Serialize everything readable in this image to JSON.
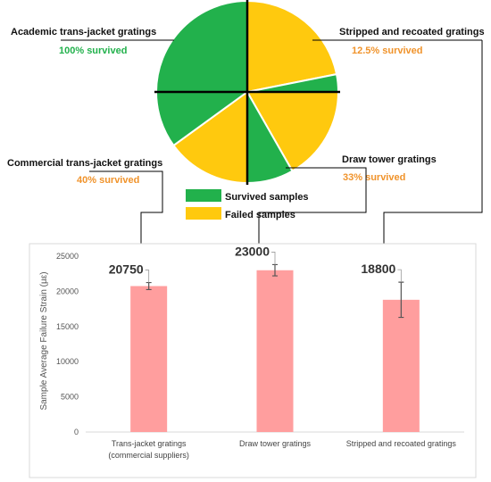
{
  "colors": {
    "survived": "#22B14C",
    "failed": "#FFC90E",
    "bar": "#FF9E9E",
    "survived_text": "#22B14C",
    "failed_text": "#F0932B",
    "axis": "#D9D9D9",
    "error": "#555555",
    "connector": "#000000"
  },
  "pie": {
    "labels": [
      {
        "title": "Academic trans-jacket gratings",
        "percent": "100% survived",
        "percent_color": "survived_text"
      },
      {
        "title": "Stripped and recoated gratings",
        "percent": "12.5% survived",
        "percent_color": "failed_text"
      },
      {
        "title": "Commercial trans-jacket gratings",
        "percent": "40% survived",
        "percent_color": "failed_text"
      },
      {
        "title": "Draw tower gratings",
        "percent": "33% survived",
        "percent_color": "failed_text"
      }
    ],
    "legend": [
      {
        "label": "Survived samples",
        "color": "survived"
      },
      {
        "label": "Failed samples",
        "color": "failed"
      }
    ],
    "quadrants": [
      {
        "name": "academic",
        "slices": [
          {
            "fraction": 1.0,
            "status": "survived"
          }
        ]
      },
      {
        "name": "stripped",
        "slices": [
          {
            "fraction": 0.875,
            "status": "failed"
          },
          {
            "fraction": 0.125,
            "status": "survived"
          }
        ]
      },
      {
        "name": "draw-tower",
        "slices": [
          {
            "fraction": 0.67,
            "status": "failed"
          },
          {
            "fraction": 0.33,
            "status": "survived"
          }
        ]
      },
      {
        "name": "commercial",
        "slices": [
          {
            "fraction": 0.6,
            "status": "failed"
          },
          {
            "fraction": 0.4,
            "status": "survived"
          }
        ]
      }
    ]
  },
  "chart_data": {
    "type": "bar",
    "categories": [
      "Trans-jacket gratings\n(commercial suppliers)",
      "Draw tower gratings",
      "Stripped and recoated gratings"
    ],
    "values": [
      20750,
      23000,
      18800
    ],
    "errors": [
      500,
      800,
      2500
    ],
    "data_labels": [
      "20750",
      "23000",
      "18800"
    ],
    "ylabel": "Sample Average Failure Strain (µε)",
    "ylim": [
      0,
      25000
    ],
    "yticks": [
      0,
      5000,
      10000,
      15000,
      20000,
      25000
    ],
    "grid": false
  }
}
